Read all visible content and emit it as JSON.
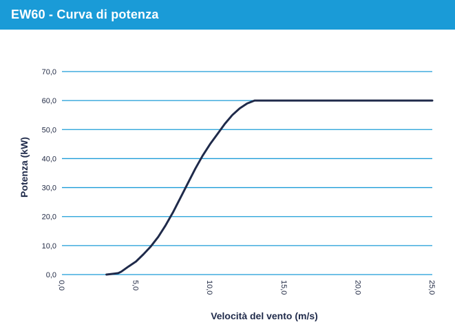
{
  "header": {
    "title": "EW60 - Curva di potenza"
  },
  "colors": {
    "header_bg": "#1a9bd7",
    "grid": "#1a9bd7",
    "line": "#1f2a4a"
  },
  "chart_data": {
    "type": "line",
    "title": "EW60 - Curva di potenza",
    "xlabel": "Velocità del vento (m/s)",
    "ylabel": "Potenza (kW)",
    "xlim": [
      0,
      25
    ],
    "ylim": [
      0,
      70
    ],
    "x_ticks": [
      "0,0",
      "5,0",
      "10,0",
      "15,0",
      "20,0",
      "25,0"
    ],
    "y_ticks": [
      "0,0",
      "10,0",
      "20,0",
      "30,0",
      "40,0",
      "50,0",
      "60,0",
      "70,0"
    ],
    "grid": true,
    "series": [
      {
        "x": [
          3.0,
          3.5,
          3.8,
          4.0,
          4.5,
          5.0,
          5.5,
          6.0,
          6.5,
          7.0,
          7.5,
          8.0,
          8.5,
          9.0,
          9.5,
          10.0,
          10.5,
          11.0,
          11.5,
          12.0,
          12.5,
          13.0,
          13.5,
          14.0,
          15.0,
          20.0,
          25.0
        ],
        "y": [
          0.0,
          0.3,
          0.5,
          1.0,
          2.8,
          4.5,
          7.0,
          9.7,
          13.0,
          17.0,
          21.5,
          26.5,
          31.5,
          36.5,
          41.0,
          45.0,
          48.5,
          52.0,
          55.0,
          57.3,
          59.0,
          60.0,
          60.0,
          60.0,
          60.0,
          60.0,
          60.0
        ]
      }
    ]
  }
}
